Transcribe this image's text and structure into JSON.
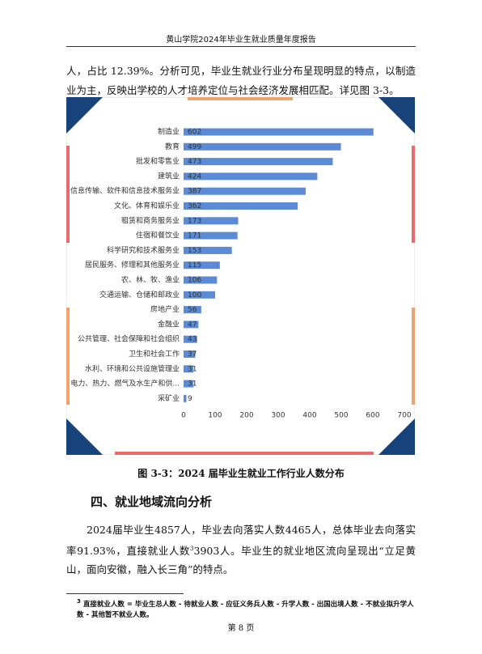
{
  "header": {
    "title": "黄山学院2024年毕业生就业质量年度报告"
  },
  "paragraph1": "人，占比 12.39%。分析可见，毕业生就业行业分布呈现明显的特点，以制造业为主，反映出学校的人才培养定位与社会经济发展相匹配。详见图 3-3。",
  "chart_data": {
    "type": "hbar",
    "color": "#5b8bd6",
    "categories": [
      "制造业",
      "教育",
      "批发和零售业",
      "建筑业",
      "信息传输、软件和信息技术服务业",
      "文化、体育和娱乐业",
      "租赁和商务服务业",
      "住宿和餐饮业",
      "科学研究和技术服务业",
      "居民服务、修理和其他服务业",
      "农、林、牧、渔业",
      "交通运输、仓储和邮政业",
      "房地产业",
      "金融业",
      "公共管理、社会保障和社会组织",
      "卫生和社会工作",
      "水利、环境和公共设施管理业",
      "电力、热力、燃气及水生产和供...",
      "采矿业"
    ],
    "values": [
      602,
      499,
      473,
      424,
      387,
      362,
      173,
      171,
      153,
      115,
      106,
      100,
      56,
      47,
      43,
      37,
      31,
      31,
      9
    ],
    "xlim": [
      0,
      700
    ],
    "xticks": [
      0,
      100,
      200,
      300,
      400,
      500,
      600,
      700
    ]
  },
  "caption": "图 3-3：2024 届毕业生就业工作行业人数分布",
  "section": {
    "heading": "四、就业地域流向分析",
    "paragraph": [
      "2024届毕业生4857人，毕业去向落实人数4465人，总体毕业去向落实率91.93%，直接就业人数",
      "3",
      "3903人。毕业生的就业地区流向呈现出“立足黄山，面向安徽，融入长三角”的特点。"
    ]
  },
  "footnote": {
    "mark": "3",
    "text": "直接就业人数 = 毕业生总人数 - 待就业人数 - 应征义务兵人数 - 升学人数 - 出国出境人数 - 不就业拟升学人数 - 其他暂不就业人数。"
  },
  "footer": {
    "page": "第 8 页"
  }
}
